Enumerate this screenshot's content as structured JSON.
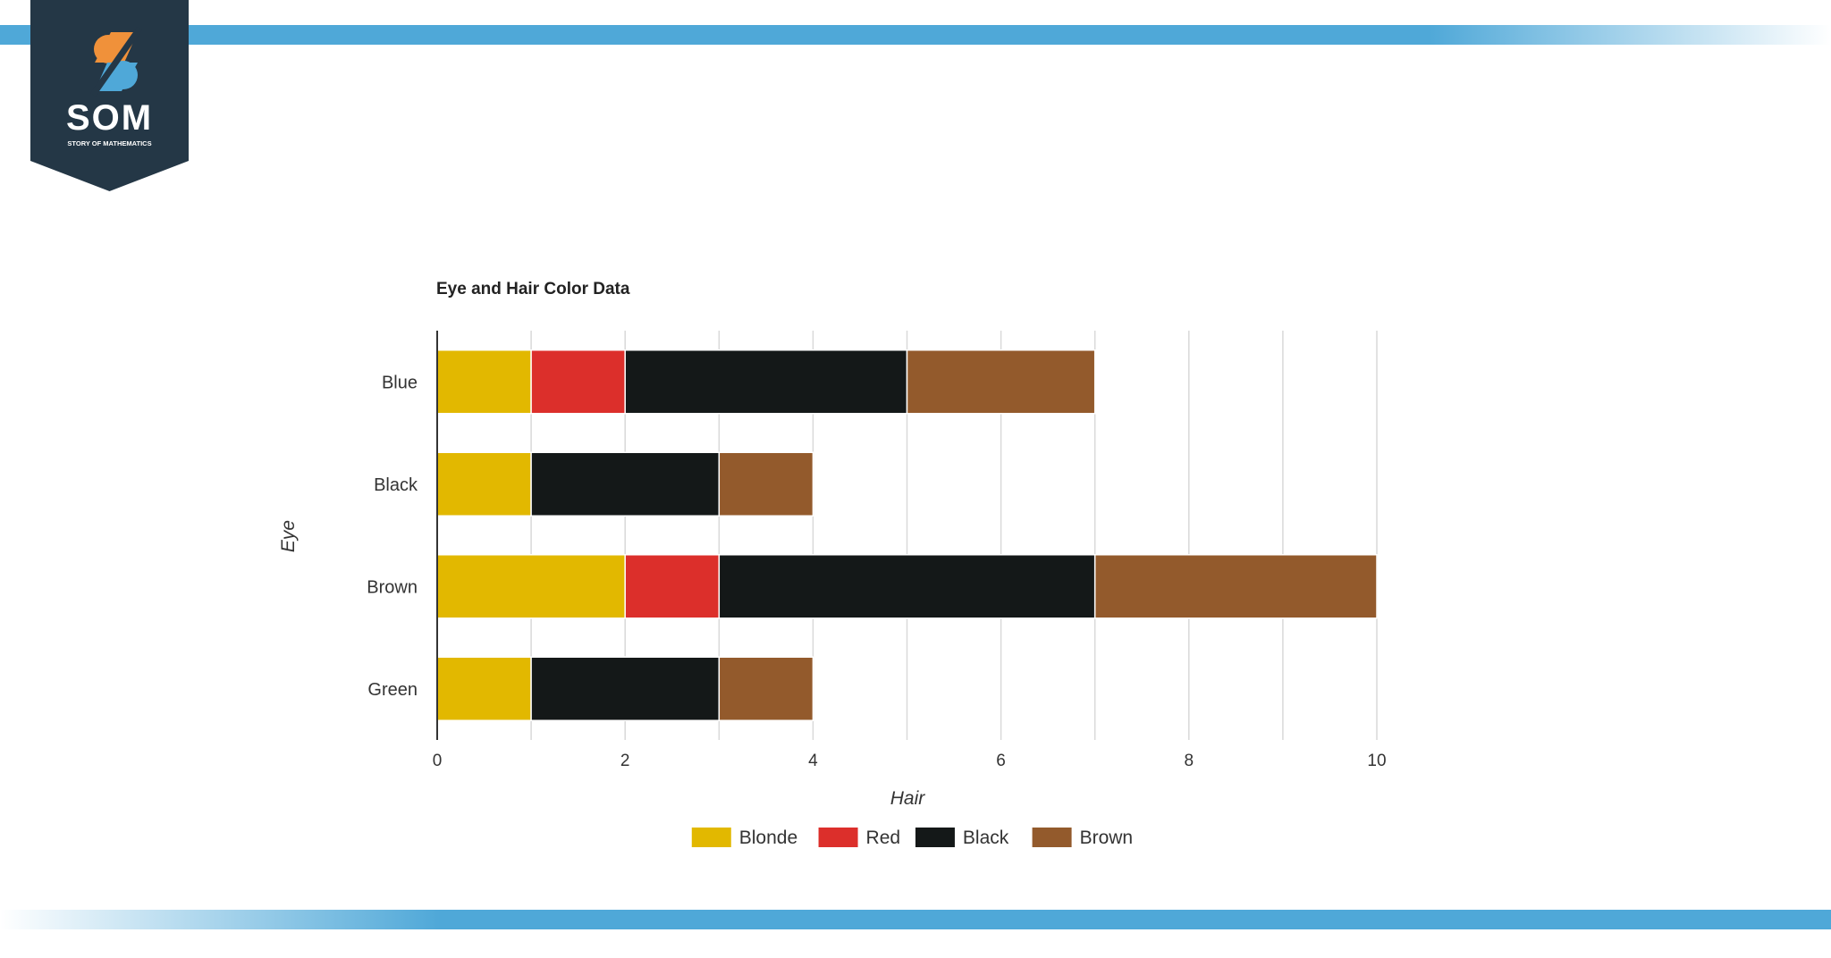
{
  "logo": {
    "text": "SOM",
    "subtitle": "STORY OF MATHEMATICS"
  },
  "colors": {
    "band": "#4fa8d8",
    "logo_bg": "#243746",
    "logo_orange": "#f0913a",
    "logo_blue": "#4fa8d8"
  },
  "chart_data": {
    "type": "bar",
    "orientation": "horizontal",
    "stacked": true,
    "title": "Eye and Hair Color Data",
    "xlabel": "Hair",
    "ylabel": "Eye",
    "categories": [
      "Blue",
      "Black",
      "Brown",
      "Green"
    ],
    "series": [
      {
        "name": "Blonde",
        "color": "#e2b800",
        "values": [
          1,
          1,
          2,
          1
        ]
      },
      {
        "name": "Red",
        "color": "#dc2f2b",
        "values": [
          1,
          0,
          1,
          0
        ]
      },
      {
        "name": "Black",
        "color": "#141818",
        "values": [
          3,
          2,
          4,
          2
        ]
      },
      {
        "name": "Brown",
        "color": "#935a2c",
        "values": [
          2,
          1,
          3,
          1
        ]
      }
    ],
    "xlim": [
      0,
      10
    ],
    "xticks": [
      0,
      2,
      4,
      6,
      8,
      10
    ],
    "grid": true,
    "legend": "bottom"
  }
}
